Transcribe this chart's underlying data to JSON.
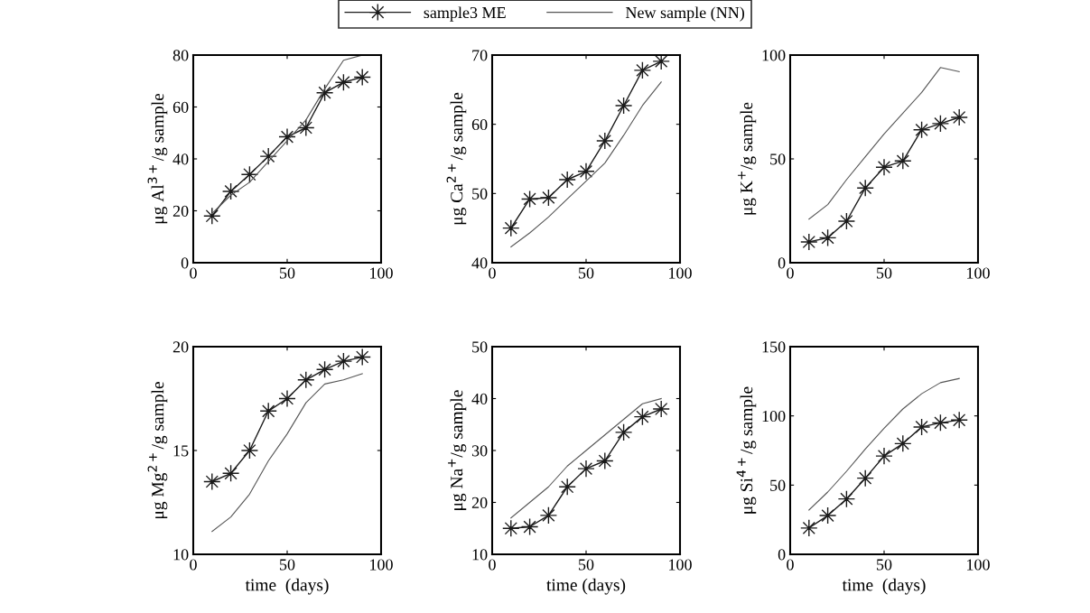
{
  "chart_data": [
    {
      "type": "line",
      "ylabel": "μg Al$^{3+}$/g sample",
      "x": [
        10,
        20,
        30,
        40,
        50,
        60,
        70,
        80,
        90
      ],
      "xlim": [
        0,
        100
      ],
      "xticks": [
        0,
        50,
        100
      ],
      "ylim": [
        0,
        80
      ],
      "yticks": [
        0,
        20,
        40,
        60,
        80
      ],
      "legend": "top",
      "grid": false,
      "series": [
        {
          "name": "sample3 ME",
          "color": "#1a1a1a",
          "marker": "star",
          "values": [
            18,
            27.5,
            34,
            41,
            48.5,
            52,
            65.5,
            69.5,
            71.5
          ]
        },
        {
          "name": "New sample (NN)",
          "color": "#555555",
          "marker": "none",
          "values": [
            19,
            26,
            31,
            39,
            47,
            55,
            67,
            78,
            80
          ]
        }
      ]
    },
    {
      "type": "line",
      "ylabel": "μg Ca$^{2+}$/g sample",
      "x": [
        10,
        20,
        30,
        40,
        50,
        60,
        70,
        80,
        90
      ],
      "xlim": [
        0,
        100
      ],
      "xticks": [
        0,
        50,
        100
      ],
      "ylim": [
        40,
        70
      ],
      "yticks": [
        40,
        50,
        60,
        70
      ],
      "grid": false,
      "series": [
        {
          "color": "#1a1a1a",
          "marker": "star",
          "values": [
            45,
            49.2,
            49.4,
            52,
            53.2,
            57.6,
            62.7,
            67.8,
            69.1
          ]
        },
        {
          "color": "#555555",
          "marker": "none",
          "values": [
            42.3,
            44.3,
            46.6,
            49.2,
            51.8,
            54.4,
            58.4,
            62.7,
            66.1
          ]
        }
      ]
    },
    {
      "type": "line",
      "ylabel": "μg K$^{+}$/g sample",
      "x": [
        10,
        20,
        30,
        40,
        50,
        60,
        70,
        80,
        90
      ],
      "xlim": [
        0,
        100
      ],
      "xticks": [
        0,
        50,
        100
      ],
      "ylim": [
        0,
        100
      ],
      "yticks": [
        0,
        50,
        100
      ],
      "grid": false,
      "series": [
        {
          "color": "#1a1a1a",
          "marker": "star",
          "values": [
            10,
            12,
            20,
            36,
            46,
            49,
            64,
            67,
            70
          ]
        },
        {
          "color": "#555555",
          "marker": "none",
          "values": [
            21,
            28,
            40,
            51,
            62,
            72,
            82,
            94,
            92
          ]
        }
      ]
    },
    {
      "type": "line",
      "xlabel": "time  (days)",
      "ylabel": "μg Mg$^{2+}$/g sample",
      "x": [
        10,
        20,
        30,
        40,
        50,
        60,
        70,
        80,
        90
      ],
      "xlim": [
        0,
        100
      ],
      "xticks": [
        0,
        50,
        100
      ],
      "ylim": [
        10,
        20
      ],
      "yticks": [
        10,
        15,
        20
      ],
      "grid": false,
      "series": [
        {
          "color": "#1a1a1a",
          "marker": "star",
          "values": [
            13.5,
            13.9,
            15.0,
            16.9,
            17.5,
            18.4,
            18.9,
            19.3,
            19.5
          ]
        },
        {
          "color": "#555555",
          "marker": "none",
          "values": [
            11.1,
            11.8,
            12.9,
            14.5,
            15.8,
            17.3,
            18.2,
            18.4,
            18.7
          ]
        }
      ]
    },
    {
      "type": "line",
      "xlabel": "time (days)",
      "ylabel": "μg Na$^{+}$/g sample",
      "x": [
        10,
        20,
        30,
        40,
        50,
        60,
        70,
        80,
        90
      ],
      "xlim": [
        0,
        100
      ],
      "xticks": [
        0,
        50,
        100
      ],
      "ylim": [
        10,
        50
      ],
      "yticks": [
        10,
        20,
        30,
        40,
        50
      ],
      "grid": false,
      "series": [
        {
          "color": "#1a1a1a",
          "marker": "star",
          "values": [
            15,
            15.3,
            17.5,
            23,
            26.5,
            28,
            33.5,
            36.5,
            38
          ]
        },
        {
          "color": "#555555",
          "marker": "none",
          "values": [
            17,
            20,
            23,
            27,
            30,
            33,
            36,
            39,
            40
          ]
        }
      ]
    },
    {
      "type": "line",
      "xlabel": "time  (days)",
      "ylabel": "μg Si$^{4+}$/g sample",
      "x": [
        10,
        20,
        30,
        40,
        50,
        60,
        70,
        80,
        90
      ],
      "xlim": [
        0,
        100
      ],
      "xticks": [
        0,
        50,
        100
      ],
      "ylim": [
        0,
        150
      ],
      "yticks": [
        0,
        50,
        100,
        150
      ],
      "grid": false,
      "series": [
        {
          "color": "#1a1a1a",
          "marker": "star",
          "values": [
            19,
            28,
            40,
            55,
            71,
            80,
            92,
            95,
            97
          ]
        },
        {
          "color": "#555555",
          "marker": "none",
          "values": [
            32,
            45,
            60,
            76,
            91,
            105,
            116,
            124,
            127
          ]
        }
      ]
    }
  ]
}
